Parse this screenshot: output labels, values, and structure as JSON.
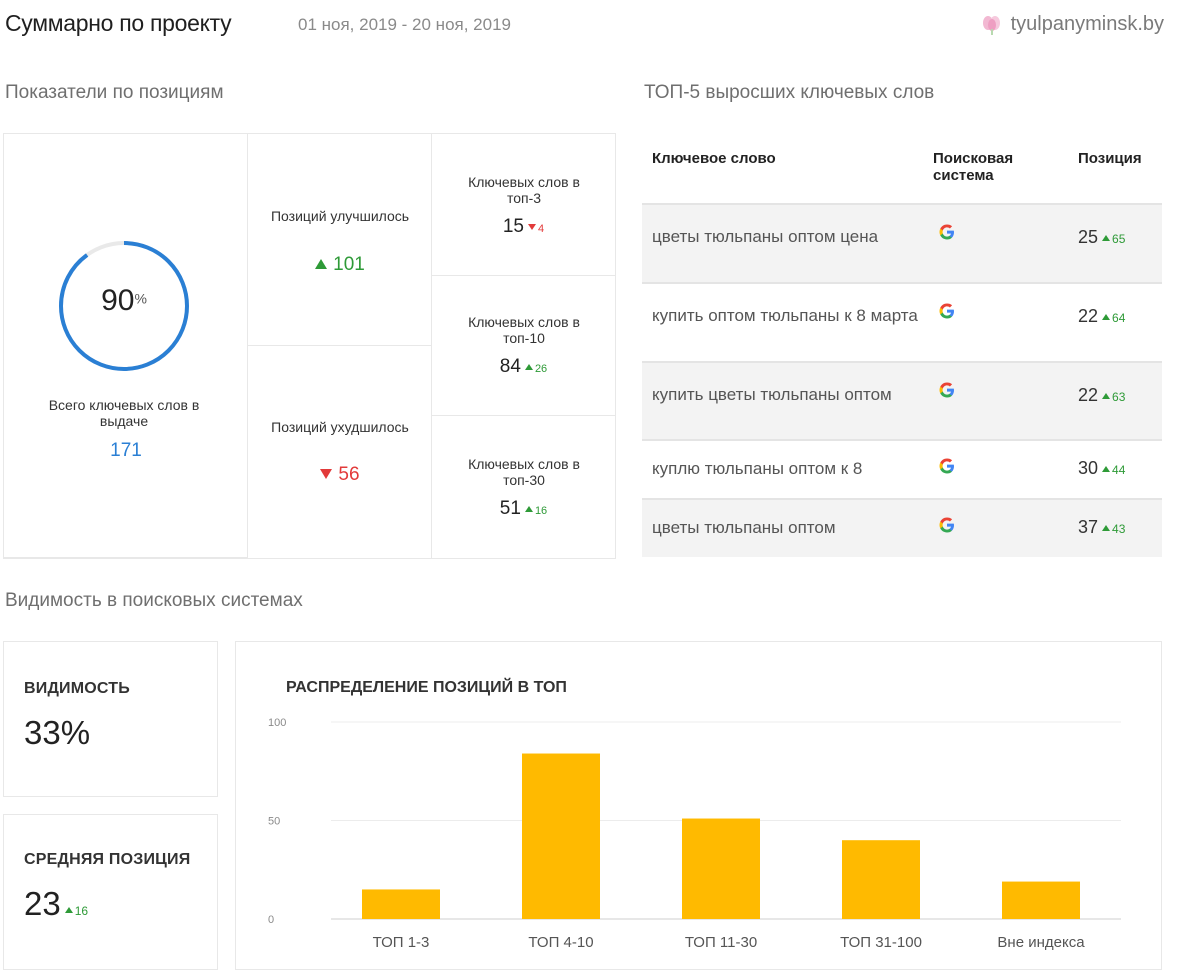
{
  "header": {
    "title": "Суммарно по проекту",
    "date_range": "01 ноя, 2019 - 20 ноя, 2019",
    "site": "tyulpanyminsk.by",
    "site_icon": "flower-icon"
  },
  "positions": {
    "section_title": "Показатели по позициям",
    "gauge_percent": "90",
    "gauge_percent_sign": "%",
    "gauge_fraction": 0.9,
    "total_label": "Всего ключевых слов в выдаче",
    "total_value": "171",
    "improved_label": "Позиций улучшилось",
    "improved_value": "101",
    "worsened_label": "Позиций ухудшилось",
    "worsened_value": "56",
    "top3_label": "Ключевых слов в топ-3",
    "top3_value": "15",
    "top3_delta": "4",
    "top10_label": "Ключевых слов в топ-10",
    "top10_value": "84",
    "top10_delta": "26",
    "top30_label": "Ключевых слов в топ-30",
    "top30_value": "51",
    "top30_delta": "16"
  },
  "top5": {
    "section_title": "ТОП-5 выросших ключевых слов",
    "col_keyword": "Ключевое слово",
    "col_engine": "Поисковая система",
    "col_position": "Позиция",
    "rows": [
      {
        "keyword": "цветы тюльпаны оптом цена",
        "engine": "google-icon",
        "position": "25",
        "delta": "65"
      },
      {
        "keyword": "купить оптом тюльпаны к 8 марта",
        "engine": "google-icon",
        "position": "22",
        "delta": "64"
      },
      {
        "keyword": "купить цветы тюльпаны оптом",
        "engine": "google-icon",
        "position": "22",
        "delta": "63"
      },
      {
        "keyword": "куплю тюльпаны оптом к 8",
        "engine": "google-icon",
        "position": "30",
        "delta": "44"
      },
      {
        "keyword": "цветы тюльпаны оптом",
        "engine": "google-icon",
        "position": "37",
        "delta": "43"
      }
    ]
  },
  "visibility": {
    "section_title": "Видимость в поисковых системах",
    "visibility_label": "ВИДИМОСТЬ",
    "visibility_value": "33%",
    "avg_label": "СРЕДНЯЯ ПОЗИЦИЯ",
    "avg_value": "23",
    "avg_delta": "16"
  },
  "chart_data": {
    "type": "bar",
    "title": "РАСПРЕДЕЛЕНИЕ ПОЗИЦИЙ В ТОП",
    "categories": [
      "ТОП 1-3",
      "ТОП 4-10",
      "ТОП 11-30",
      "ТОП 31-100",
      "Вне индекса"
    ],
    "values": [
      15,
      84,
      51,
      40,
      19
    ],
    "ylim": [
      0,
      100
    ],
    "yticks": [
      "0",
      "50",
      "100"
    ],
    "bar_color": "#ffba00",
    "grid": true,
    "xlabel": "",
    "ylabel": ""
  },
  "colors": {
    "accent_blue": "#2a7fd4",
    "up_green": "#2e9a37",
    "down_red": "#e23a3a"
  }
}
